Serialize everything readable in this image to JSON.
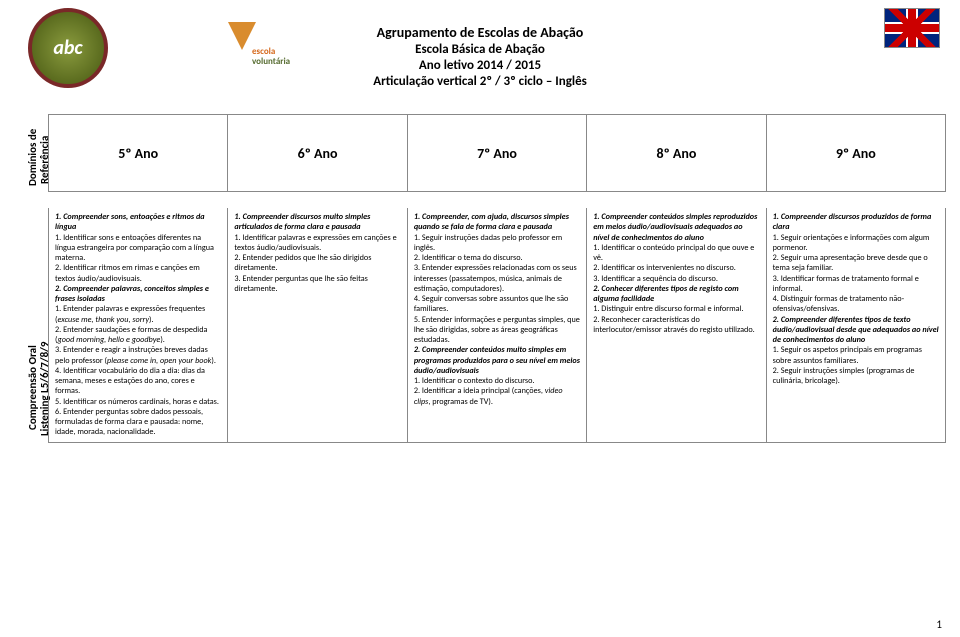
{
  "header": {
    "line1": "Agrupamento de Escolas de Abação",
    "line2": "Escola Básica de Abação",
    "line3": "Ano letivo 2014 / 2015",
    "line4": "Articulação vertical 2º / 3º ciclo – Inglês"
  },
  "side": {
    "dominios": "Domínios de",
    "referencia": "Referência",
    "compreensao": "Compreensão Oral",
    "listening": "Listening L5/6/7/8/9"
  },
  "anos": [
    "5º Ano",
    "6º Ano",
    "7º Ano",
    "8º Ano",
    "9º Ano"
  ],
  "col5": {
    "t1": "1. Compreender sons, entoações e ritmos da língua",
    "p1": "1. Identificar sons e entoações diferentes na língua estrangeira por comparação com a língua materna.",
    "p2": "2. Identificar ritmos em rimas e canções em textos áudio/audiovisuais.",
    "t2": "2. Compreender palavras, conceitos simples e frases isoladas",
    "p3a": "1. Entender palavras e expressões frequentes (",
    "p3i": "excuse me, thank you, sorry",
    "p3b": ").",
    "p4a": "2. Entender saudações e formas de despedida (",
    "p4i": "good morning, hello e goodbye",
    "p4b": ").",
    "p5a": "3. Entender e reagir a instruções breves dadas pelo professor (",
    "p5i": "please come in, open your book",
    "p5b": ").",
    "p6": "4. Identificar vocabulário do dia a dia: dias da semana, meses e estações do ano, cores e formas.",
    "p7": "5. Identificar os números cardinais, horas e datas.",
    "p8": "6. Entender perguntas sobre dados pessoais, formuladas de forma clara e pausada: nome, idade, morada, nacionalidade."
  },
  "col6": {
    "t1": "1. Compreender discursos muito simples articulados de forma clara e pausada",
    "p1": "1. Identificar palavras e expressões em canções e textos áudio/audiovisuais.",
    "p2": "2. Entender pedidos que lhe são dirigidos diretamente.",
    "p3": "3. Entender perguntas que lhe são feitas diretamente."
  },
  "col7": {
    "t1": "1. Compreender, com ajuda, discursos simples quando se fala de forma clara e pausada",
    "p1": "1. Seguir instruções dadas pelo professor em inglês.",
    "p2": "2. Identificar o tema do discurso.",
    "p3": "3. Entender expressões relacionadas com os seus interesses (passatempos, música, animais de estimação, computadores).",
    "p4": "4. Seguir conversas sobre assuntos que lhe são familiares.",
    "p5": "5. Entender informações e perguntas simples, que lhe são dirigidas, sobre as áreas geográficas estudadas.",
    "t2": "2. Compreender conteúdos muito simples em programas produzidos para o seu nível em meios áudio/audiovisuais",
    "p6": "1. Identificar o contexto do discurso.",
    "p7a": "2. Identificar a ideia principal (canções, ",
    "p7i": "video clips",
    "p7b": ", programas de TV)."
  },
  "col8": {
    "t1": "1. Compreender conteúdos simples reproduzidos em meios áudio/audiovisuais adequados ao nível de conhecimentos do aluno",
    "p1": "1. Identificar o conteúdo principal do que ouve e vê.",
    "p2": "2. Identificar os intervenientes no discurso.",
    "p3": "3. Identificar a sequência do discurso.",
    "t2": "2. Conhecer diferentes tipos de registo com alguma facilidade",
    "p4": "1. Distinguir entre discurso formal e informal.",
    "p5": "2. Reconhecer características do interlocutor/emissor através do registo utilizado."
  },
  "col9": {
    "t1": "1. Compreender discursos produzidos de forma clara",
    "p1": "1. Seguir orientações e informações com algum pormenor.",
    "p2": "2. Seguir uma apresentação breve desde que o tema seja familiar.",
    "p3": "3. Identificar formas de tratamento formal e informal.",
    "p4": "4. Distinguir formas de tratamento não-ofensivas/ofensivas.",
    "t2": "2. Compreender diferentes tipos de texto áudio/audiovisual desde que adequados ao nível de conhecimentos do aluno",
    "p5": "1. Seguir os aspetos principais em programas sobre assuntos familiares.",
    "p6": "2. Seguir instruções simples (programas de culinária, bricolage)."
  },
  "page": "1"
}
